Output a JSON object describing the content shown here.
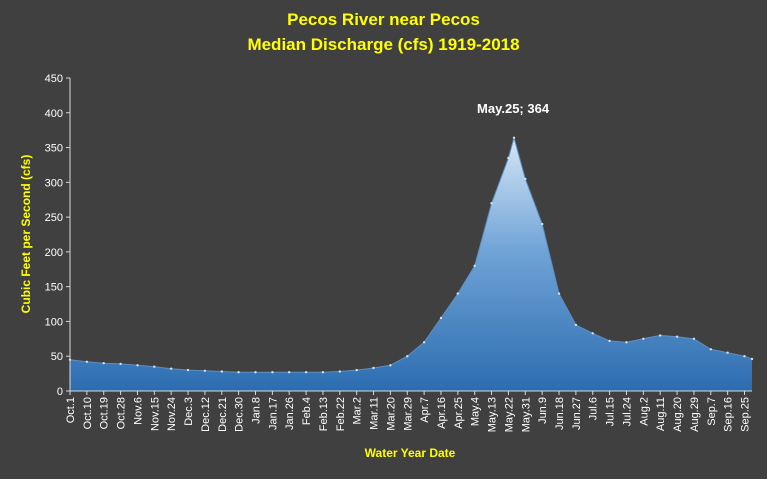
{
  "chart_data": {
    "type": "area",
    "title": "Pecos River near Pecos",
    "subtitle": "Median Discharge (cfs) 1919-2018",
    "xlabel": "Water Year Date",
    "ylabel": "Cubic Feet per Second (cfs)",
    "ylim": [
      0,
      450
    ],
    "yticks": [
      0,
      50,
      100,
      150,
      200,
      250,
      300,
      350,
      400,
      450
    ],
    "grid": false,
    "xticks": [
      "Oct.1",
      "Oct.10",
      "Oct.19",
      "Oct.28",
      "Nov.6",
      "Nov.15",
      "Nov.24",
      "Dec.3",
      "Dec.12",
      "Dec.21",
      "Dec.30",
      "Jan.8",
      "Jan.17",
      "Jan.26",
      "Feb.4",
      "Feb.13",
      "Feb.22",
      "Mar.2",
      "Mar.11",
      "Mar.20",
      "Mar.29",
      "Apr.7",
      "Apr.16",
      "Apr.25",
      "May.4",
      "May.13",
      "May.22",
      "May.31",
      "Jun.9",
      "Jun.18",
      "Jun.27",
      "Jul.6",
      "Jul.15",
      "Jul.24",
      "Aug.2",
      "Aug.11",
      "Aug.20",
      "Aug.29",
      "Sep.7",
      "Sep.16",
      "Sep.25"
    ],
    "series": [
      {
        "x": [
          "Oct.1",
          "Oct.10",
          "Oct.19",
          "Oct.28",
          "Nov.6",
          "Nov.15",
          "Nov.24",
          "Dec.3",
          "Dec.12",
          "Dec.21",
          "Dec.30",
          "Jan.8",
          "Jan.17",
          "Jan.26",
          "Feb.4",
          "Feb.13",
          "Feb.22",
          "Mar.2",
          "Mar.11",
          "Mar.20",
          "Mar.29",
          "Apr.7",
          "Apr.16",
          "Apr.25",
          "May.4",
          "May.13",
          "May.22",
          "May.25",
          "May.31",
          "Jun.9",
          "Jun.18",
          "Jun.27",
          "Jul.6",
          "Jul.15",
          "Jul.24",
          "Aug.2",
          "Aug.11",
          "Aug.20",
          "Aug.29",
          "Sep.7",
          "Sep.16",
          "Sep.25",
          "Sep.30"
        ],
        "day": [
          0,
          9,
          18,
          27,
          36,
          45,
          54,
          63,
          72,
          81,
          90,
          99,
          108,
          117,
          126,
          135,
          144,
          153,
          162,
          171,
          180,
          189,
          198,
          207,
          216,
          225,
          234,
          237,
          243,
          252,
          261,
          270,
          279,
          288,
          297,
          306,
          315,
          324,
          333,
          342,
          351,
          360,
          364
        ],
        "y": [
          45,
          42,
          40,
          39,
          37,
          35,
          32,
          30,
          29,
          28,
          27,
          27,
          27,
          27,
          27,
          27,
          28,
          30,
          33,
          37,
          50,
          70,
          105,
          140,
          180,
          270,
          335,
          364,
          305,
          240,
          140,
          95,
          83,
          72,
          70,
          75,
          80,
          78,
          75,
          60,
          55,
          50,
          46
        ]
      }
    ],
    "annotations": [
      {
        "text": "May.25; 364",
        "x": "May.25",
        "y": 364
      }
    ]
  }
}
